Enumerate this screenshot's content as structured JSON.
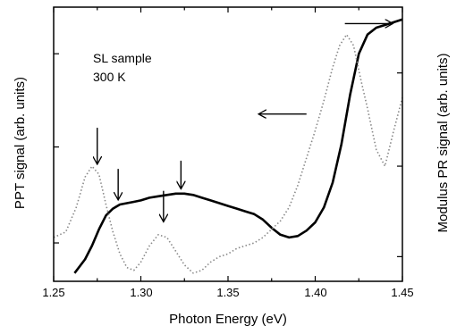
{
  "chart_data": {
    "type": "line",
    "xlabel": "Photon Energy (eV)",
    "ylabel_left": "PPT signal (arb. units)",
    "ylabel_right": "Modulus PR signal (arb. units)",
    "xlim": [
      1.25,
      1.45
    ],
    "ylim": [
      0,
      1
    ],
    "xticks": [
      "1.25",
      "1.30",
      "1.35",
      "1.40",
      "1.45"
    ],
    "annotations": [
      "SL sample",
      "300 K"
    ],
    "series": [
      {
        "style": "solid",
        "color": "#000000",
        "x": [
          1.262,
          1.268,
          1.272,
          1.276,
          1.28,
          1.284,
          1.288,
          1.292,
          1.296,
          1.3,
          1.305,
          1.31,
          1.315,
          1.32,
          1.325,
          1.33,
          1.335,
          1.34,
          1.345,
          1.35,
          1.355,
          1.36,
          1.365,
          1.37,
          1.375,
          1.38,
          1.385,
          1.39,
          1.395,
          1.4,
          1.405,
          1.41,
          1.415,
          1.42,
          1.425,
          1.43,
          1.435,
          1.44,
          1.445,
          1.45
        ],
        "y": [
          0.03,
          0.08,
          0.13,
          0.19,
          0.24,
          0.265,
          0.28,
          0.285,
          0.29,
          0.295,
          0.305,
          0.31,
          0.315,
          0.32,
          0.32,
          0.315,
          0.305,
          0.295,
          0.285,
          0.275,
          0.265,
          0.255,
          0.245,
          0.225,
          0.195,
          0.17,
          0.16,
          0.165,
          0.185,
          0.215,
          0.27,
          0.36,
          0.5,
          0.68,
          0.83,
          0.9,
          0.925,
          0.935,
          0.945,
          0.955
        ]
      },
      {
        "style": "dotted",
        "color": "#888888",
        "x": [
          1.25,
          1.257,
          1.263,
          1.268,
          1.272,
          1.276,
          1.28,
          1.284,
          1.288,
          1.292,
          1.296,
          1.3,
          1.305,
          1.31,
          1.315,
          1.32,
          1.325,
          1.33,
          1.335,
          1.34,
          1.345,
          1.35,
          1.355,
          1.36,
          1.365,
          1.37,
          1.375,
          1.38,
          1.385,
          1.39,
          1.395,
          1.4,
          1.405,
          1.41,
          1.414,
          1.418,
          1.422,
          1.426,
          1.43,
          1.435,
          1.44,
          1.445,
          1.45
        ],
        "y": [
          0.16,
          0.18,
          0.27,
          0.38,
          0.42,
          0.39,
          0.28,
          0.18,
          0.1,
          0.05,
          0.04,
          0.07,
          0.13,
          0.17,
          0.16,
          0.11,
          0.06,
          0.03,
          0.04,
          0.07,
          0.09,
          0.1,
          0.12,
          0.13,
          0.14,
          0.16,
          0.19,
          0.22,
          0.27,
          0.35,
          0.45,
          0.55,
          0.66,
          0.78,
          0.86,
          0.9,
          0.86,
          0.74,
          0.63,
          0.48,
          0.42,
          0.55,
          0.67
        ]
      }
    ],
    "arrows": [
      {
        "x": 1.275,
        "y_start": 0.56,
        "y_end": 0.43,
        "direction": "down"
      },
      {
        "x": 1.287,
        "y_start": 0.41,
        "y_end": 0.3,
        "direction": "down"
      },
      {
        "x": 1.313,
        "y_start": 0.33,
        "y_end": 0.22,
        "direction": "down"
      },
      {
        "x": 1.323,
        "y_start": 0.44,
        "y_end": 0.34,
        "direction": "down"
      },
      {
        "y": 0.61,
        "x_start": 1.395,
        "x_end": 1.368,
        "direction": "left"
      },
      {
        "y": 0.94,
        "x_start": 1.417,
        "x_end": 1.444,
        "direction": "right"
      }
    ],
    "grid": false
  }
}
